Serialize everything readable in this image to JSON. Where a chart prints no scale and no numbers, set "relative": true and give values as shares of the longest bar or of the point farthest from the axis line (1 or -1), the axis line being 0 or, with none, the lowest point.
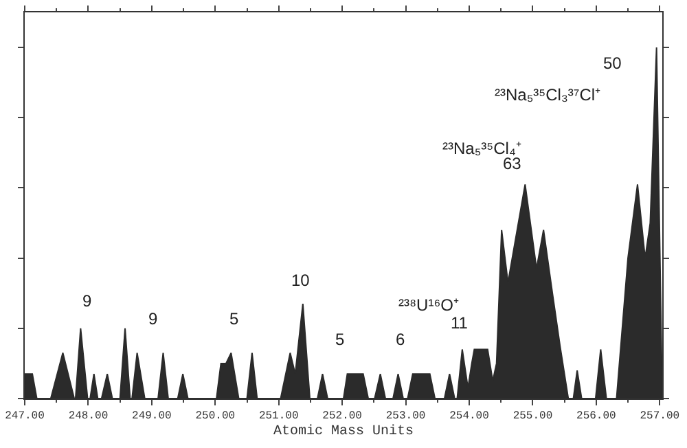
{
  "chart_data": {
    "type": "area",
    "relative": true,
    "xlabel": "Atomic Mass Units",
    "xlim": [
      247,
      257.04
    ],
    "xticks": [
      {
        "value": 247,
        "label": "247.00"
      },
      {
        "value": 248,
        "label": "248.00"
      },
      {
        "value": 249,
        "label": "249.00"
      },
      {
        "value": 250,
        "label": "250.00"
      },
      {
        "value": 251,
        "label": "251.00"
      },
      {
        "value": 252,
        "label": "252.00"
      },
      {
        "value": 253,
        "label": "253.00"
      },
      {
        "value": 254,
        "label": "254.00"
      },
      {
        "value": 255,
        "label": "255.00"
      },
      {
        "value": 256,
        "label": "256.00"
      },
      {
        "value": 257,
        "label": "257.00"
      }
    ],
    "series": [
      {
        "color": "#2b2b2b",
        "x": [
          247.0,
          247.001,
          247.12,
          247.19,
          247.41,
          247.6,
          247.78,
          247.8,
          247.88,
          247.99,
          248.03,
          248.09,
          248.15,
          248.21,
          248.3,
          248.38,
          248.5,
          248.58,
          248.66,
          248.69,
          248.77,
          248.89,
          249.1,
          249.18,
          249.26,
          249.41,
          249.49,
          249.57,
          250.02,
          250.09,
          250.17,
          250.25,
          250.37,
          250.5,
          250.58,
          250.66,
          251.03,
          251.18,
          251.26,
          251.38,
          251.49,
          251.61,
          251.69,
          251.77,
          252.02,
          252.08,
          252.33,
          252.41,
          252.51,
          252.6,
          252.68,
          252.8,
          252.88,
          252.96,
          253.03,
          253.11,
          253.38,
          253.46,
          253.61,
          253.69,
          253.77,
          253.81,
          253.89,
          253.98,
          254.04,
          254.08,
          254.29,
          254.37,
          254.43,
          254.51,
          254.61,
          254.88,
          255.06,
          255.17,
          255.31,
          255.43,
          255.56,
          255.64,
          255.7,
          255.77,
          255.99,
          256.07,
          256.16,
          256.32,
          256.5,
          256.65,
          256.77,
          256.85,
          256.95,
          257.04
        ],
        "values": [
          0,
          0.07,
          0.07,
          0,
          0,
          0.13,
          0,
          0,
          0.2,
          0,
          0,
          0.07,
          0,
          0,
          0.07,
          0,
          0,
          0.2,
          0,
          0,
          0.13,
          0,
          0,
          0.13,
          0,
          0,
          0.07,
          0,
          0,
          0.1,
          0.1,
          0.13,
          0,
          0,
          0.13,
          0,
          0,
          0.13,
          0.07,
          0.27,
          0,
          0,
          0.07,
          0,
          0,
          0.07,
          0.07,
          0,
          0,
          0.07,
          0,
          0,
          0.07,
          0,
          0,
          0.07,
          0.07,
          0,
          0,
          0.07,
          0,
          0,
          0.14,
          0.03,
          0.1,
          0.14,
          0.14,
          0.05,
          0.1,
          0.48,
          0.33,
          0.61,
          0.37,
          0.48,
          0.3,
          0.15,
          0,
          0,
          0.08,
          0,
          0,
          0.14,
          0,
          0,
          0.4,
          0.61,
          0.4,
          0.5,
          1,
          0
        ]
      }
    ],
    "annotations": [
      "9",
      "9",
      "5",
      "10",
      "5",
      "6",
      "11",
      "²³⁸U¹⁶O⁺",
      "63",
      "²³Na₅³⁵Cl₄⁺",
      "50",
      "²³Na₅³⁵Cl₃³⁷Cl⁺"
    ]
  }
}
